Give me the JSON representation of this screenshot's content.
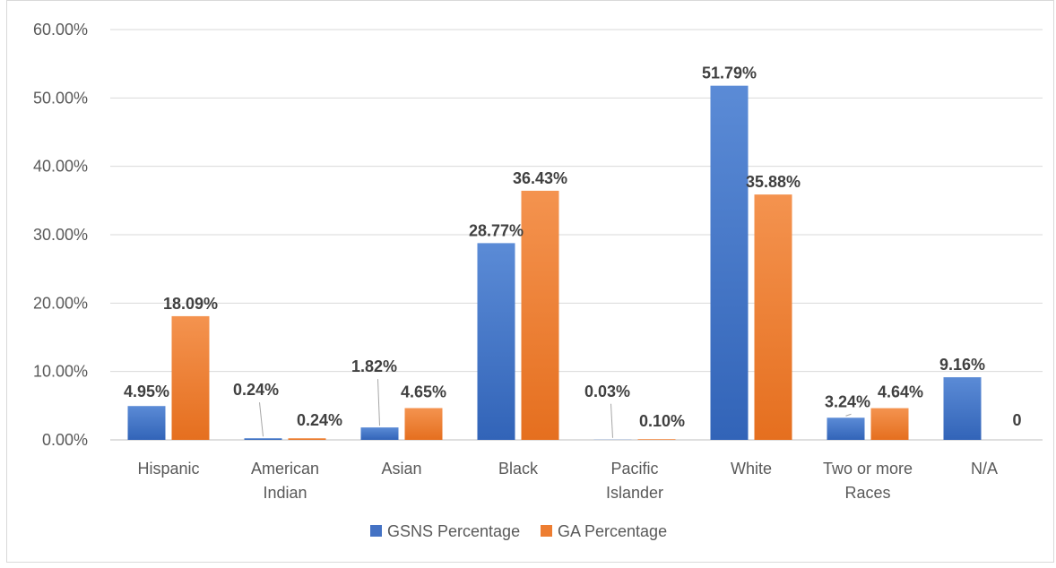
{
  "chart_data": {
    "type": "bar",
    "title": "",
    "xlabel": "",
    "ylabel": "",
    "ylim": [
      0,
      60
    ],
    "y_tick_labels": [
      "0.00%",
      "10.00%",
      "20.00%",
      "30.00%",
      "40.00%",
      "50.00%",
      "60.00%"
    ],
    "grid": true,
    "legend_position": "bottom",
    "categories": [
      [
        "Hispanic"
      ],
      [
        "American",
        "Indian"
      ],
      [
        "Asian"
      ],
      [
        "Black"
      ],
      [
        "Pacific",
        "Islander"
      ],
      [
        "White"
      ],
      [
        "Two or more",
        "Races"
      ],
      [
        "N/A"
      ]
    ],
    "series": [
      {
        "name": "GSNS Percentage",
        "color": "#4472c4",
        "values": [
          4.95,
          0.24,
          1.82,
          28.77,
          0.03,
          51.79,
          3.24,
          9.16
        ],
        "labels": [
          "4.95%",
          "0.24%",
          "1.82%",
          "28.77%",
          "0.03%",
          "51.79%",
          "3.24%",
          "9.16%"
        ]
      },
      {
        "name": "GA Percentage",
        "color": "#ed7d31",
        "values": [
          18.09,
          0.24,
          4.65,
          36.43,
          0.1,
          35.88,
          4.64,
          0
        ],
        "labels": [
          "18.09%",
          "0.24%",
          "4.65%",
          "36.43%",
          "0.10%",
          "35.88%",
          "4.64%",
          "0"
        ]
      }
    ]
  }
}
